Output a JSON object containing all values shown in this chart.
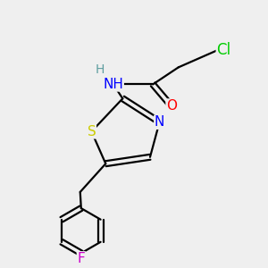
{
  "background_color": "#efefef",
  "atom_colors": {
    "C": "#000000",
    "H": "#5f9ea0",
    "N": "#0000ff",
    "O": "#ff0000",
    "S": "#cccc00",
    "F": "#cc00cc",
    "Cl": "#00cc00"
  },
  "bond_color": "#000000",
  "bond_width": 1.6,
  "font_size": 11
}
